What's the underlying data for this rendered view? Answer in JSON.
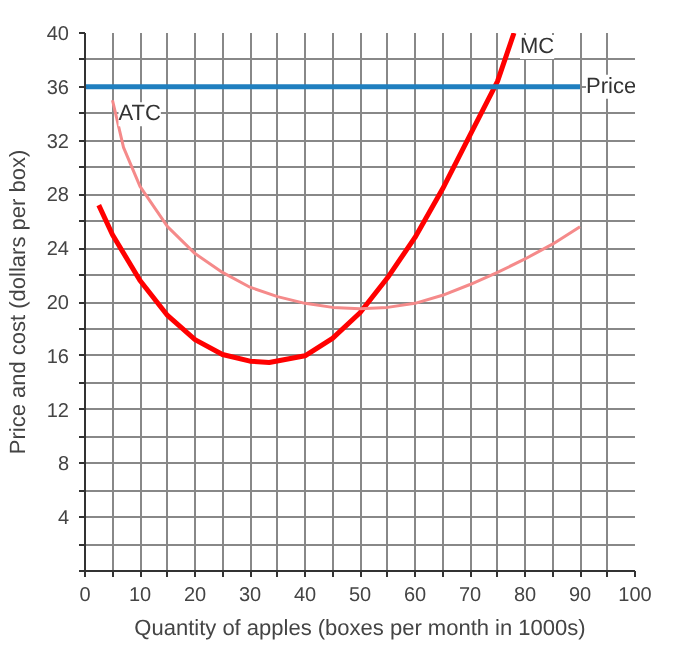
{
  "chart_data": {
    "type": "line",
    "xlabel": "Quantity of apples (boxes per month in 1000s)",
    "ylabel": "Price and cost (dollars per box)",
    "xlim": [
      0,
      100
    ],
    "ylim": [
      0,
      40
    ],
    "xticks": [
      0,
      {
        "value": 5,
        "label": null
      },
      10,
      {
        "value": 15,
        "label": null
      },
      20,
      {
        "value": 25,
        "label": null
      },
      30,
      {
        "value": 35,
        "label": null
      },
      40,
      {
        "value": 45,
        "label": null
      },
      50,
      {
        "value": 55,
        "label": null
      },
      60,
      {
        "value": 65,
        "label": null
      },
      70,
      {
        "value": 75,
        "label": null
      },
      80,
      {
        "value": 85,
        "label": null
      },
      90,
      {
        "value": 95,
        "label": null
      },
      100
    ],
    "yticks": [
      {
        "value": 0,
        "label": null
      },
      {
        "value": 2,
        "label": null
      },
      4,
      {
        "value": 6,
        "label": null
      },
      8,
      {
        "value": 10,
        "label": null
      },
      12,
      {
        "value": 14,
        "label": null
      },
      16,
      {
        "value": 18,
        "label": null
      },
      20,
      {
        "value": 22,
        "label": null
      },
      24,
      {
        "value": 26,
        "label": null
      },
      28,
      {
        "value": 30,
        "label": null
      },
      32,
      {
        "value": 34,
        "label": null
      },
      36,
      {
        "value": 38,
        "label": null
      },
      40
    ],
    "grid": true,
    "legend": false,
    "marker": "none",
    "line_style": "solid",
    "series": [
      {
        "name": "MC",
        "color": "#ff0000",
        "x": [
          2.5,
          5,
          10,
          15,
          20,
          25,
          30,
          33.5,
          40,
          45,
          50,
          55,
          60,
          65,
          70,
          75,
          78
        ],
        "values": [
          27.2,
          25,
          21.6,
          19,
          17.2,
          16.1,
          15.6,
          15.5,
          16,
          17.3,
          19.2,
          21.8,
          24.8,
          28.4,
          32.4,
          36.4,
          40
        ]
      },
      {
        "name": "ATC",
        "color": "#f58a8a",
        "x": [
          5,
          7,
          10,
          15,
          20,
          25,
          30,
          35,
          40,
          45,
          50,
          55,
          60,
          65,
          70,
          75,
          80,
          85,
          90
        ],
        "values": [
          35,
          31.5,
          28.6,
          25.6,
          23.6,
          22.2,
          21.1,
          20.4,
          19.9,
          19.6,
          19.5,
          19.6,
          19.9,
          20.5,
          21.3,
          22.2,
          23.2,
          24.3,
          25.6
        ]
      },
      {
        "name": "Price",
        "color": "#1f7fbf",
        "x": [
          0,
          90
        ],
        "values": [
          36,
          36
        ]
      }
    ]
  }
}
